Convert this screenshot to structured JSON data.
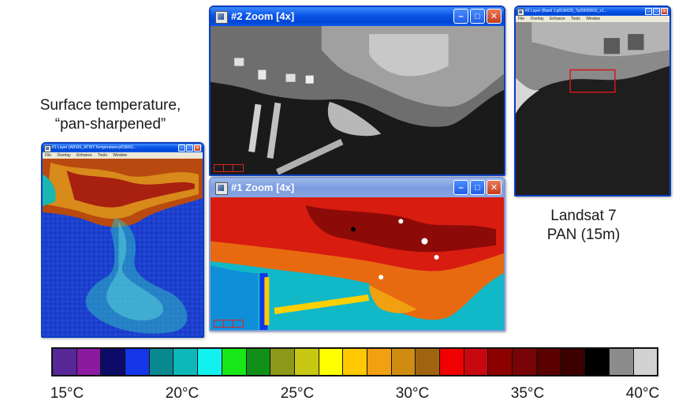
{
  "captions": {
    "left": "Surface temperature,\n“pan-sharpened”",
    "right": "Landsat 7\nPAN (15m)"
  },
  "windows": {
    "zoom2": {
      "title": "#2 Zoom [4x]",
      "icon": "envi-window-icon"
    },
    "zoom1": {
      "title": "#1 Zoom [4x]",
      "icon": "envi-window-icon"
    },
    "layer1": {
      "title": "#1 Layer (ARSIS_ATWT:Temperature:p018r02...",
      "menu": [
        "File",
        "Overlay",
        "Enhance",
        "Tools",
        "Window"
      ]
    },
    "band1": {
      "title": "#2 Layer (Band 1:p018r029_7p20020810_z1...",
      "menu": [
        "File",
        "Overlay",
        "Enhance",
        "Tools",
        "Window"
      ]
    }
  },
  "window_buttons": {
    "minimize": "–",
    "maximize": "□",
    "close": "✕"
  },
  "colorbar": {
    "colors": [
      "#582898",
      "#8c1aa0",
      "#0c0c68",
      "#1236e8",
      "#0a8890",
      "#0fb8b8",
      "#12f0f0",
      "#18e818",
      "#109018",
      "#8c9818",
      "#c8c814",
      "#ffff00",
      "#ffc800",
      "#f0a010",
      "#d08c10",
      "#a06410",
      "#f00000",
      "#c80810",
      "#8c0000",
      "#780408",
      "#5a0000",
      "#3c0000",
      "#000000",
      "#8c8c8c",
      "#d2d2d2"
    ],
    "ticks": [
      {
        "label": "15°C",
        "value": 15
      },
      {
        "label": "20°C",
        "value": 20
      },
      {
        "label": "25°C",
        "value": 25
      },
      {
        "label": "30°C",
        "value": 30
      },
      {
        "label": "35°C",
        "value": 35
      },
      {
        "label": "40°C",
        "value": 40
      }
    ],
    "range": [
      15,
      40
    ]
  }
}
